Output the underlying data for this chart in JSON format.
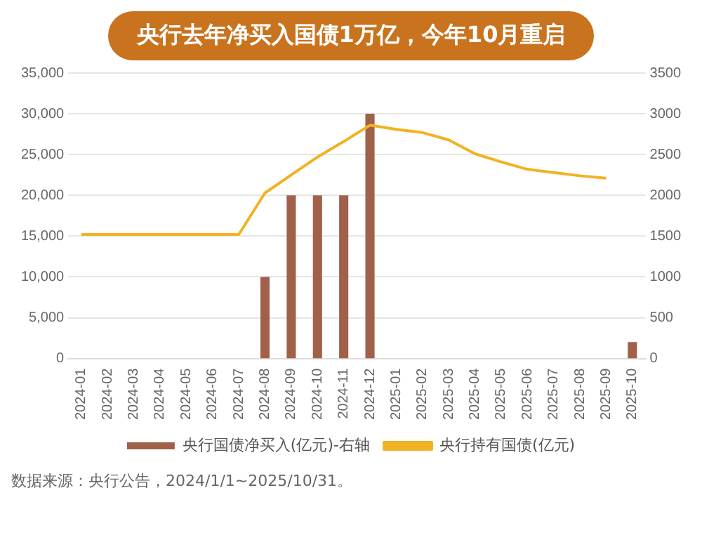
{
  "chart_data": {
    "type": "bar",
    "title": "央行去年净买入国债1万亿，今年10月重启",
    "categories": [
      "2024-01",
      "2024-02",
      "2024-03",
      "2024-04",
      "2024-05",
      "2024-06",
      "2024-07",
      "2024-08",
      "2024-09",
      "2024-10",
      "2024-11",
      "2024-12",
      "2025-01",
      "2025-02",
      "2025-03",
      "2025-04",
      "2025-05",
      "2025-06",
      "2025-07",
      "2025-08",
      "2025-09",
      "2025-10"
    ],
    "series": [
      {
        "name": "央行国债净买入(亿元)-右轴",
        "axis": "y2",
        "color": "#a0604a",
        "values": [
          null,
          null,
          null,
          null,
          null,
          null,
          null,
          1000,
          2000,
          2000,
          2000,
          3000,
          null,
          null,
          null,
          null,
          null,
          null,
          null,
          null,
          null,
          200
        ]
      },
      {
        "name": "央行持有国债(亿元)",
        "type": "line",
        "color": "#f0b323",
        "values": [
          15200,
          15200,
          15200,
          15200,
          15200,
          15200,
          15200,
          20300,
          22500,
          24700,
          26600,
          28600,
          28100,
          27700,
          26800,
          25100,
          24100,
          23200,
          22800,
          22400,
          22100,
          null
        ]
      }
    ],
    "ylim": [
      0,
      35000
    ],
    "yticks": [
      0,
      {
        "value": 5000,
        "label": "5,000"
      },
      {
        "value": 10000,
        "label": "10,000"
      },
      {
        "value": 15000,
        "label": "15,000"
      },
      {
        "value": 20000,
        "label": "20,000"
      },
      {
        "value": 25000,
        "label": "25,000"
      },
      {
        "value": 30000,
        "label": "30,000"
      },
      {
        "value": 35000,
        "label": "35,000"
      }
    ],
    "y2lim": [
      0,
      3500
    ],
    "y2ticks": [
      0,
      500,
      1000,
      1500,
      2000,
      2500,
      3000,
      3500
    ],
    "grid": "y",
    "legend": "bottom",
    "marker": "none",
    "annotations": [
      "数据来源：央行公告，2024/1/1~2025/10/31。"
    ]
  }
}
